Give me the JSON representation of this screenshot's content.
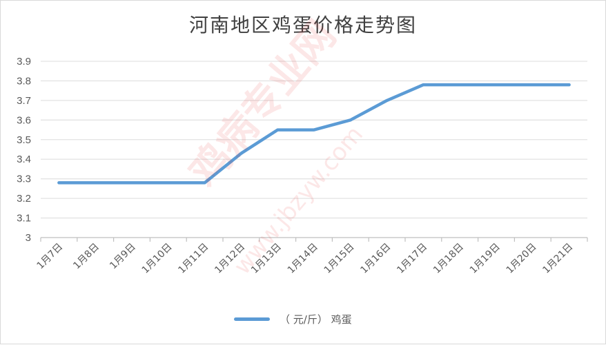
{
  "chart_data": {
    "type": "line",
    "title": "河南地区鸡蛋价格走势图",
    "xlabel": "",
    "ylabel": "",
    "categories": [
      "1月7日",
      "1月8日",
      "1月9日",
      "1月10日",
      "1月11日",
      "1月12日",
      "1月13日",
      "1月14日",
      "1月15日",
      "1月16日",
      "1月17日",
      "1月18日",
      "1月19日",
      "1月20日",
      "1月21日"
    ],
    "series": [
      {
        "name": "（元/斤）鸡蛋",
        "color": "#5b9bd5",
        "values": [
          3.28,
          3.28,
          3.28,
          3.28,
          3.28,
          3.43,
          3.55,
          3.55,
          3.6,
          3.7,
          3.78,
          3.78,
          3.78,
          3.78,
          3.78
        ]
      }
    ],
    "ylim": [
      3,
      3.9
    ],
    "yticks": [
      "3",
      "3.1",
      "3.2",
      "3.3",
      "3.4",
      "3.5",
      "3.6",
      "3.7",
      "3.8",
      "3.9"
    ],
    "grid": true,
    "legend_position": "bottom"
  },
  "legend": {
    "label": "（ 元/斤） 鸡蛋"
  },
  "watermark": {
    "text": "鸡病专业网",
    "url": "www.jbzyw.com"
  }
}
